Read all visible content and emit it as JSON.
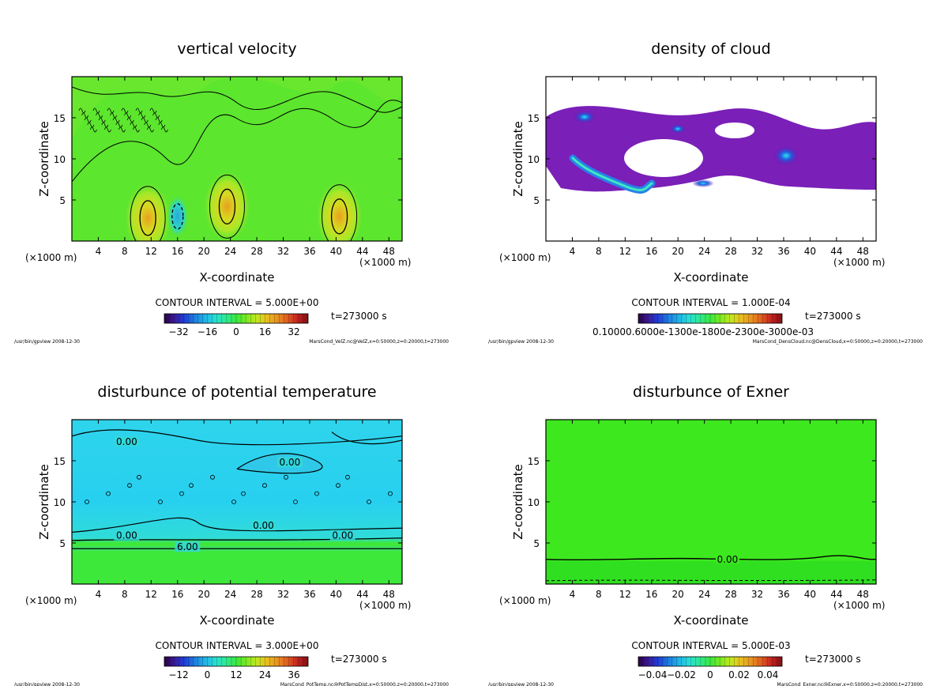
{
  "chart_data": [
    {
      "type": "heatmap",
      "title": "vertical velocity",
      "xlabel": "X-coordinate",
      "ylabel": "Z-coordinate",
      "x_unit": "(×1000 m)",
      "xticks": [
        4,
        8,
        12,
        16,
        20,
        24,
        28,
        32,
        36,
        40,
        44,
        48
      ],
      "yticks": [
        5,
        10,
        15
      ],
      "xlim": [
        0,
        50
      ],
      "ylim": [
        0,
        20
      ],
      "contour_interval": "CONTOUR INTERVAL = 5.000E+00",
      "colorbar_ticks": [
        "−32",
        "−16",
        "0",
        "16",
        "32"
      ],
      "time": "t=273000 s",
      "footer_left": "/usr/bin/gpview   2008-12-30",
      "footer_right": "MarsCond_VelZ.nc@VelZ,x=0:50000,z=0:20000,t=273000",
      "background_color": "#5ce62e",
      "features": [
        {
          "x": 11.5,
          "y": 2.8,
          "kind": "updraft"
        },
        {
          "x": 23.5,
          "y": 4.2,
          "kind": "updraft"
        },
        {
          "x": 40.5,
          "y": 3.0,
          "kind": "updraft"
        },
        {
          "x": 16.0,
          "y": 3.0,
          "kind": "downdraft"
        }
      ]
    },
    {
      "type": "heatmap",
      "title": "density of cloud",
      "xlabel": "X-coordinate",
      "ylabel": "Z-coordinate",
      "x_unit": "(×1000 m)",
      "xticks": [
        4,
        8,
        12,
        16,
        20,
        24,
        28,
        32,
        36,
        40,
        44,
        48
      ],
      "yticks": [
        5,
        10,
        15
      ],
      "xlim": [
        0,
        50
      ],
      "ylim": [
        0,
        20
      ],
      "contour_interval": "CONTOUR INTERVAL = 1.000E-04",
      "colorbar_ticks": [
        "0.10000.6000e-1300e-1800e-2300e-3000e-03"
      ],
      "time": "t=273000 s",
      "footer_left": "/usr/bin/gpview   2008-12-30",
      "footer_right": "MarsCond_DensCloud.nc@DensCloud,x=0:50000,z=0:20000,t=273000",
      "cloud_color": "#7a1fb8"
    },
    {
      "type": "heatmap",
      "title": "disturbunce of potential temperature",
      "xlabel": "X-coordinate",
      "ylabel": "Z-coordinate",
      "x_unit": "(×1000 m)",
      "xticks": [
        4,
        8,
        12,
        16,
        20,
        24,
        28,
        32,
        36,
        40,
        44,
        48
      ],
      "yticks": [
        5,
        10,
        15
      ],
      "xlim": [
        0,
        50
      ],
      "ylim": [
        0,
        20
      ],
      "contour_interval": "CONTOUR INTERVAL = 3.000E+00",
      "colorbar_ticks": [
        "−12",
        "0",
        "12",
        "24",
        "36"
      ],
      "time": "t=273000 s",
      "footer_left": "/usr/bin/gpview   2008-12-30",
      "footer_right": "MarsCond_PotTemp.nc@PotTempDist,x=0:50000,z=0:20000,t=273000",
      "contour_labels": [
        {
          "text": "0.00",
          "x": 8.3,
          "y": 17.2
        },
        {
          "text": "0.00",
          "x": 33.0,
          "y": 14.7
        },
        {
          "text": "0.00",
          "x": 29.0,
          "y": 7.0
        },
        {
          "text": "0.00",
          "x": 8.3,
          "y": 5.8
        },
        {
          "text": "0.00",
          "x": 41.0,
          "y": 5.8
        },
        {
          "text": "6.00",
          "x": 17.5,
          "y": 4.4
        }
      ],
      "upper_color": "#25d9f0",
      "lower_color": "#3ee83a"
    },
    {
      "type": "heatmap",
      "title": "disturbunce of Exner",
      "xlabel": "X-coordinate",
      "ylabel": "Z-coordinate",
      "x_unit": "(×1000 m)",
      "xticks": [
        4,
        8,
        12,
        16,
        20,
        24,
        28,
        32,
        36,
        40,
        44,
        48
      ],
      "yticks": [
        5,
        10,
        15
      ],
      "xlim": [
        0,
        50
      ],
      "ylim": [
        0,
        20
      ],
      "contour_interval": "CONTOUR INTERVAL = 5.000E-03",
      "colorbar_ticks": [
        "−0.04",
        "−0.02",
        "0",
        "0.02",
        "0.04"
      ],
      "time": "t=273000 s",
      "footer_left": "/usr/bin/gpview   2008-12-30",
      "footer_right": "MarsCond_Exner.nc@Exner,x=0:50000,z=0:20000,t=273000",
      "contour_labels": [
        {
          "text": "0.00",
          "x": 27.5,
          "y": 3.0
        }
      ],
      "background_color": "#3de81f"
    }
  ],
  "colors": {
    "colorbar": [
      "#2a0040",
      "#3a1a9a",
      "#1f3fd8",
      "#1f7de0",
      "#20b8e8",
      "#28e0d0",
      "#30e890",
      "#38e840",
      "#7ce820",
      "#c0e820",
      "#e8c020",
      "#e89020",
      "#e05a20",
      "#c02020",
      "#801010"
    ],
    "contour": "#000000"
  }
}
